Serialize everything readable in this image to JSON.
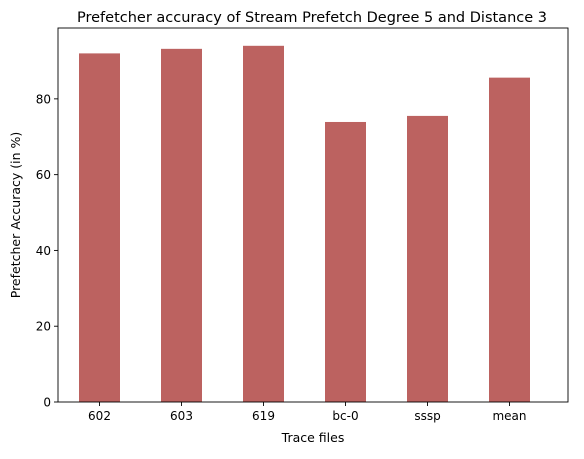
{
  "chart_data": {
    "type": "bar",
    "title": "Prefetcher accuracy of Stream Prefetch Degree 5 and Distance 3",
    "xlabel": "Trace files",
    "ylabel": "Prefetcher Accuracy (in %)",
    "categories": [
      "602",
      "603",
      "619",
      "bc-0",
      "sssp",
      "mean"
    ],
    "values": [
      92.0,
      93.2,
      94.0,
      73.9,
      75.5,
      85.6
    ],
    "ylim": [
      0,
      98.7
    ],
    "yticks": [
      0,
      20,
      40,
      60,
      80
    ],
    "bar_color": "#bc6260",
    "grid": false,
    "legend": "none"
  }
}
